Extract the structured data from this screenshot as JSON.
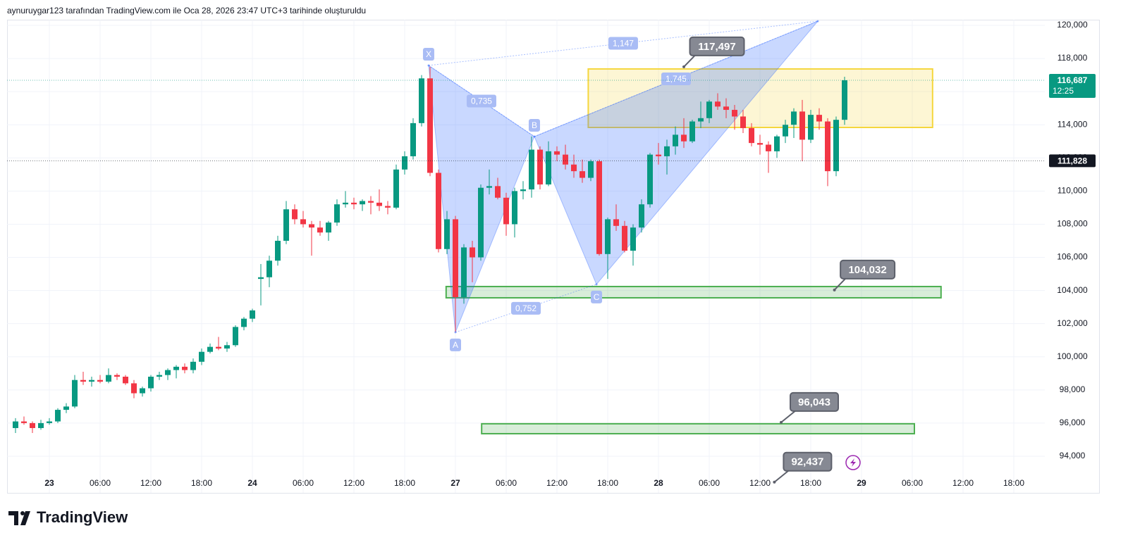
{
  "header": {
    "text": "aynuruygar123 tarafından TradingView.com ile Oca 28, 2026 23:47 UTC+3 tarihinde oluşturuldu"
  },
  "brand": {
    "name": "TradingView"
  },
  "chart_data": {
    "type": "candlestick",
    "categories": [
      null,
      null,
      null,
      null,
      "23",
      null,
      null,
      null,
      null,
      null,
      "06:00",
      null,
      null,
      null,
      null,
      null,
      "12:00",
      null,
      null,
      null,
      null,
      null,
      "18:00",
      null,
      null,
      null,
      null,
      null,
      "24",
      null,
      null,
      null,
      null,
      null,
      "06:00",
      null,
      null,
      null,
      null,
      null,
      "12:00",
      null,
      null,
      null,
      null,
      null,
      "18:00",
      null,
      null,
      null,
      null,
      null,
      "27",
      null,
      null,
      null,
      null,
      null,
      "06:00",
      null,
      null,
      null,
      null,
      null,
      "12:00",
      null,
      null,
      null,
      null,
      null,
      "18:00",
      null,
      null,
      null,
      null,
      null,
      "28",
      null,
      null,
      null,
      null,
      null,
      "06:00",
      null,
      null,
      null,
      null,
      null,
      "12:00",
      null,
      null,
      null,
      null,
      null,
      "18:00",
      null,
      null,
      null,
      null,
      null,
      "29",
      null,
      null,
      null,
      null,
      null,
      "06:00",
      null,
      null,
      null,
      null,
      null,
      "12:00",
      null,
      null,
      null,
      null,
      null,
      "18:00",
      null
    ],
    "open": [
      95700,
      96100,
      96000,
      95700,
      96000,
      96100,
      96800,
      97000,
      98600,
      98500,
      98600,
      98500,
      98900,
      98800,
      98400,
      97800,
      98100,
      98800,
      98900,
      99200,
      99400,
      99200,
      99700,
      100300,
      100600,
      100500,
      100700,
      101800,
      102300,
      104700,
      104800,
      105800,
      107000,
      108900,
      108300,
      108000,
      107800,
      107500,
      108100,
      109200,
      109300,
      109200,
      109400,
      109300,
      109100,
      109000,
      111300,
      112100,
      114100,
      116800,
      111100,
      106500,
      108300,
      103600,
      106600,
      106000,
      110200,
      110300,
      109600,
      108000,
      110000,
      110100,
      112500,
      110400,
      112400,
      112200,
      111600,
      111200,
      110800,
      111800,
      106200,
      108300,
      107900,
      106400,
      107800,
      109200,
      112200,
      112100,
      112700,
      113400,
      113000,
      114200,
      114400,
      115400,
      115100,
      114900,
      114500,
      113800,
      112900,
      112800,
      112400,
      113300,
      114000,
      114800,
      113100,
      114600,
      114200,
      111200,
      114300,
      null,
      null,
      null,
      null,
      null,
      null,
      null,
      null,
      null,
      null,
      null,
      null,
      null,
      null,
      null,
      null,
      null,
      null,
      null,
      null,
      null
    ],
    "high": [
      96300,
      96400,
      96100,
      96200,
      96300,
      96900,
      97200,
      98900,
      99100,
      98800,
      98900,
      99300,
      99000,
      98900,
      98600,
      98200,
      98900,
      99100,
      99300,
      99500,
      99600,
      99900,
      100500,
      100800,
      101200,
      100900,
      101900,
      102400,
      102900,
      105600,
      106100,
      107300,
      109400,
      109200,
      108800,
      108200,
      108200,
      108200,
      109500,
      110000,
      109600,
      109500,
      109700,
      110100,
      109400,
      111600,
      112400,
      114400,
      117000,
      117500,
      111300,
      108800,
      108500,
      106800,
      107000,
      110400,
      111300,
      110800,
      109900,
      110200,
      110600,
      113300,
      112700,
      113000,
      112700,
      112800,
      112200,
      111900,
      111900,
      111900,
      108400,
      109200,
      108200,
      108000,
      109500,
      112300,
      112900,
      113100,
      113900,
      114400,
      114300,
      115400,
      115500,
      115900,
      115600,
      115200,
      114900,
      114100,
      113400,
      113000,
      113400,
      114300,
      115000,
      115500,
      114900,
      115000,
      114400,
      114500,
      116900,
      null,
      null,
      null,
      null,
      null,
      null,
      null,
      null,
      null,
      null,
      null,
      null,
      null,
      null,
      null,
      null,
      null,
      null,
      null,
      null,
      null
    ],
    "low": [
      95400,
      95900,
      95400,
      95600,
      95900,
      96000,
      96600,
      96900,
      98300,
      98200,
      98400,
      98400,
      98600,
      98300,
      97500,
      97600,
      97900,
      98600,
      98600,
      98700,
      99000,
      99000,
      99500,
      100200,
      100400,
      100300,
      100600,
      101600,
      102100,
      103100,
      104200,
      105500,
      106800,
      108000,
      107800,
      106100,
      107300,
      107000,
      107900,
      109000,
      108900,
      108800,
      108600,
      108800,
      108600,
      108900,
      111000,
      111900,
      113900,
      110900,
      106300,
      106200,
      101500,
      103200,
      104500,
      105800,
      109800,
      109500,
      107300,
      107200,
      109500,
      109600,
      110100,
      110300,
      111800,
      111300,
      110800,
      110500,
      110600,
      106100,
      104700,
      107600,
      106300,
      105500,
      107500,
      109000,
      111600,
      111000,
      112200,
      112600,
      112900,
      113800,
      114100,
      114900,
      114400,
      113700,
      113500,
      112700,
      112200,
      111100,
      112000,
      112900,
      113200,
      111800,
      112900,
      113700,
      110300,
      110900,
      114000,
      null,
      null,
      null,
      null,
      null,
      null,
      null,
      null,
      null,
      null,
      null,
      null,
      null,
      null,
      null,
      null,
      null,
      null,
      null,
      null,
      null
    ],
    "close": [
      96100,
      96000,
      95700,
      96000,
      96100,
      96800,
      97000,
      98600,
      98500,
      98600,
      98500,
      98900,
      98800,
      98400,
      97800,
      98100,
      98800,
      98900,
      99200,
      99400,
      99200,
      99700,
      100300,
      100600,
      100500,
      100700,
      101800,
      102300,
      102800,
      104800,
      105800,
      107000,
      108900,
      108300,
      108000,
      107800,
      107500,
      108100,
      109200,
      109300,
      109200,
      109400,
      109300,
      109100,
      109000,
      111300,
      112100,
      114100,
      116800,
      111100,
      106500,
      108300,
      103600,
      106600,
      106000,
      110200,
      110300,
      109600,
      108000,
      110000,
      110100,
      112500,
      110400,
      112400,
      112200,
      111600,
      111200,
      110800,
      111800,
      106200,
      108300,
      107900,
      106400,
      107800,
      109200,
      112200,
      112100,
      112700,
      113400,
      113000,
      114200,
      114400,
      115400,
      115100,
      114900,
      114500,
      113800,
      112900,
      112800,
      112400,
      113300,
      114000,
      114800,
      113100,
      114600,
      114200,
      111200,
      114300,
      116687,
      null,
      null,
      null,
      null,
      null,
      null,
      null,
      null,
      null,
      null,
      null,
      null,
      null,
      null,
      null,
      null,
      null,
      null,
      null,
      null,
      null
    ],
    "up_color": "#089981",
    "down_color": "#f23645",
    "ylim": [
      91790,
      120340
    ],
    "yticks": [
      {
        "value": 94000,
        "label": "94,000"
      },
      {
        "value": 96000,
        "label": "96,000"
      },
      {
        "value": 98000,
        "label": "98,000"
      },
      {
        "value": 100000,
        "label": "100,000"
      },
      {
        "value": 102000,
        "label": "102,000"
      },
      {
        "value": 104000,
        "label": "104,000"
      },
      {
        "value": 106000,
        "label": "106,000"
      },
      {
        "value": 108000,
        "label": "108,000"
      },
      {
        "value": 110000,
        "label": "110,000"
      },
      {
        "value": 112000,
        "label": "112,000"
      },
      {
        "value": 114000,
        "label": "114,000"
      },
      {
        "value": 116000,
        "label": "116,000"
      },
      {
        "value": 118000,
        "label": "118,000"
      },
      {
        "value": 120000,
        "label": "120,000"
      }
    ],
    "grid": true,
    "price_lines": [
      {
        "value": 116687,
        "label": "116,687",
        "sublabel": "12:25",
        "color": "#089981"
      },
      {
        "value": 111828,
        "label": "111,828",
        "color": "#131722"
      }
    ],
    "zones": [
      {
        "from": 67.7,
        "to": 108.4,
        "low": 113840,
        "high": 117370,
        "color": "#f5d63d"
      },
      {
        "from": 50.9,
        "to": 109.4,
        "low": 103560,
        "high": 104240,
        "color": "#4caf50"
      },
      {
        "from": 55.1,
        "to": 106.25,
        "low": 95360,
        "high": 95960,
        "color": "#4caf50"
      }
    ],
    "pattern": {
      "color": "#2962ff",
      "points": [
        {
          "label": "X",
          "at": 48.83,
          "value": 117580
        },
        {
          "label": "A",
          "at": 52,
          "value": 101480
        },
        {
          "label": "B",
          "at": 61.33,
          "value": 113290
        },
        {
          "label": "C",
          "at": 68.67,
          "value": 104370
        },
        {
          "at": 94.83,
          "value": 120250
        }
      ],
      "ratios": [
        {
          "value": 1.147,
          "label": "1,147"
        },
        {
          "value": 0.735,
          "label": "0,735"
        },
        {
          "value": 1.745,
          "label": "1,745"
        },
        {
          "value": 0.752,
          "label": "0,752"
        }
      ]
    },
    "callouts": [
      {
        "value": 117497,
        "label": "117,497",
        "at": 79
      },
      {
        "value": 104032,
        "label": "104,032",
        "at": 96.8
      },
      {
        "value": 96043,
        "label": "96,043",
        "at": 90.5
      },
      {
        "value": 92437,
        "label": "92,437",
        "at": 89.7
      }
    ]
  }
}
